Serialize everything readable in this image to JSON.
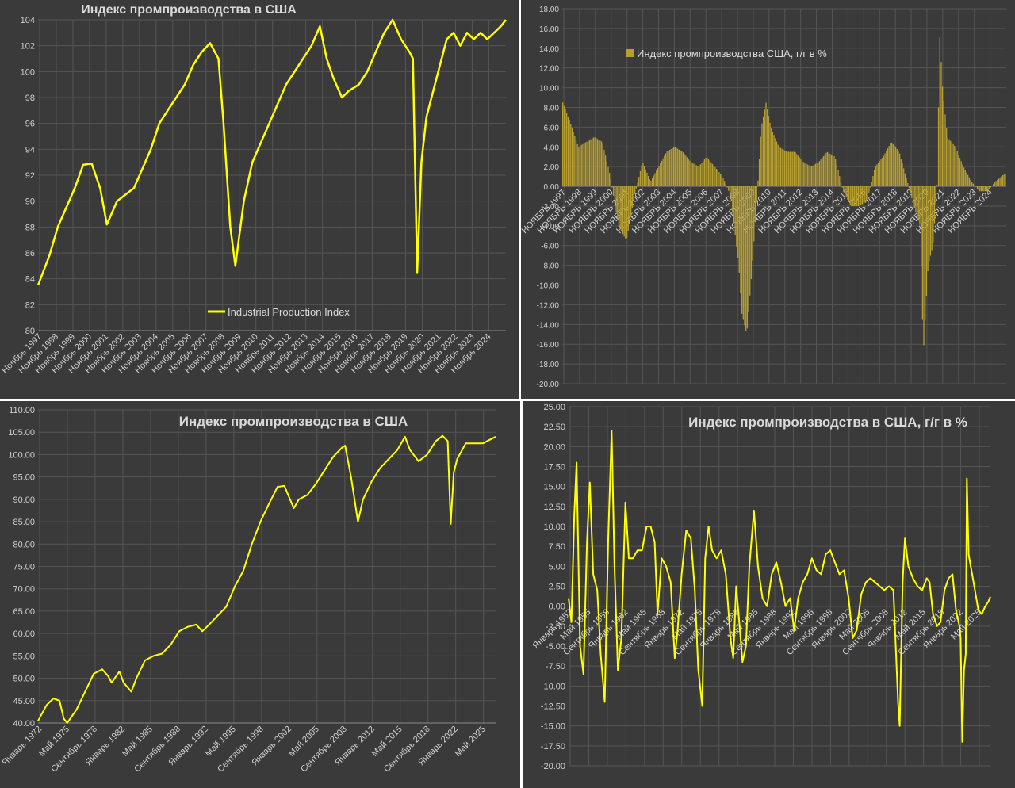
{
  "colors": {
    "background": "#3a3a3a",
    "grid": "#555555",
    "line": "#ffff00",
    "bar": "#b8a030",
    "text": "#d9d9d9"
  },
  "chart_data": [
    {
      "id": "p1",
      "type": "line",
      "title": "Индекс промпроизводства в США",
      "legend": "Industrial Production Index",
      "legend_position": "bottom-center",
      "grid": true,
      "ylim": [
        80,
        104
      ],
      "yticks": [
        "80",
        "82",
        "84",
        "86",
        "88",
        "90",
        "92",
        "94",
        "96",
        "98",
        "100",
        "102",
        "104"
      ],
      "xlim": [
        1997.83,
        2025.5
      ],
      "xlabels": [
        "Ноябрь 1997",
        "Ноябрь 1998",
        "Ноябрь 1999",
        "Ноябрь 2000",
        "Ноябрь 2001",
        "Ноябрь 2002",
        "Ноябрь 2003",
        "Ноябрь 2004",
        "Ноябрь 2005",
        "Ноябрь 2006",
        "Ноябрь 2007",
        "Ноябрь 2008",
        "Ноябрь 2009",
        "Ноябрь 2010",
        "Ноябрь 2011",
        "Ноябрь 2012",
        "Ноябрь 2013",
        "Ноябрь 2014",
        "Ноябрь 2015",
        "Ноябрь 2016",
        "Ноябрь 2017",
        "Ноябрь 2018",
        "Ноябрь 2019",
        "Ноябрь 2020",
        "Ноябрь 2021",
        "Ноябрь 2022",
        "Ноябрь 2023",
        "Ноябрь 2024"
      ],
      "x": [
        1997.83,
        1998.5,
        1999.0,
        1999.5,
        2000.0,
        2000.5,
        2001.0,
        2001.5,
        2001.9,
        2002.5,
        2003.0,
        2003.5,
        2004.0,
        2004.5,
        2005.0,
        2005.5,
        2006.0,
        2006.5,
        2007.0,
        2007.5,
        2008.0,
        2008.5,
        2008.8,
        2009.2,
        2009.5,
        2010.0,
        2010.5,
        2011.0,
        2011.5,
        2012.0,
        2012.5,
        2013.0,
        2013.5,
        2014.0,
        2014.5,
        2014.9,
        2015.3,
        2015.8,
        2016.2,
        2016.8,
        2017.3,
        2017.8,
        2018.3,
        2018.8,
        2019.3,
        2019.8,
        2020.0,
        2020.25,
        2020.5,
        2020.8,
        2021.2,
        2021.6,
        2022.0,
        2022.4,
        2022.8,
        2023.2,
        2023.6,
        2024.0,
        2024.4,
        2024.8,
        2025.2,
        2025.5
      ],
      "y": [
        83.5,
        85.8,
        88.0,
        89.5,
        91.0,
        92.8,
        92.9,
        91.0,
        88.2,
        90.0,
        90.5,
        91.0,
        92.5,
        94.0,
        96.0,
        97.0,
        98.0,
        99.0,
        100.5,
        101.5,
        102.2,
        101.0,
        96.0,
        88.0,
        85.0,
        90.0,
        93.0,
        94.5,
        96.0,
        97.5,
        99.0,
        100.0,
        101.0,
        102.0,
        103.5,
        101.0,
        99.5,
        98.0,
        98.5,
        99.0,
        100.0,
        101.5,
        103.0,
        104.0,
        102.5,
        101.5,
        101.0,
        84.5,
        93.0,
        96.5,
        98.5,
        100.5,
        102.5,
        103.0,
        102.0,
        103.0,
        102.5,
        103.0,
        102.5,
        103.0,
        103.5,
        104.0
      ]
    },
    {
      "id": "p2",
      "type": "bar",
      "legend": "Индекс промпроизводства США, г/г в %",
      "legend_position": "top-left",
      "grid": true,
      "ylim": [
        -20,
        18
      ],
      "yticks": [
        "-20.00",
        "-18.00",
        "-16.00",
        "-14.00",
        "-12.00",
        "-10.00",
        "-8.00",
        "-6.00",
        "-4.00",
        "-2.00",
        "0.00",
        "2.00",
        "4.00",
        "6.00",
        "8.00",
        "10.00",
        "12.00",
        "14.00",
        "16.00",
        "18.00"
      ],
      "xlim": [
        1997.83,
        2025.5
      ],
      "xlabels": [
        "НОЯБРЬ 1997",
        "НОЯБРЬ 1998",
        "НОЯБРЬ 1999",
        "НОЯБРЬ 2000",
        "НОЯБРЬ 2001",
        "НОЯБРЬ 2002",
        "НОЯБРЬ 2003",
        "НОЯБРЬ 2004",
        "НОЯБРЬ 2005",
        "НОЯБРЬ 2006",
        "НОЯБРЬ 2007",
        "НОЯБРЬ 2008",
        "НОЯБРЬ 2009",
        "НОЯБРЬ 2010",
        "НОЯБРЬ 2011",
        "НОЯБРЬ 2012",
        "НОЯБРЬ 2013",
        "НОЯБРЬ 2014",
        "НОЯБРЬ 2015",
        "НОЯБРЬ 2016",
        "НОЯБРЬ 2017",
        "НОЯБРЬ 2018",
        "НОЯБРЬ 2019",
        "НОЯБРЬ 2020",
        "НОЯБРЬ 2021",
        "НОЯБРЬ 2022",
        "НОЯБРЬ 2023",
        "НОЯБРЬ 2024"
      ],
      "x": [
        1997.83,
        1998.3,
        1998.8,
        1999.3,
        1999.8,
        2000.3,
        2000.8,
        2001.3,
        2001.8,
        2002.3,
        2002.8,
        2003.3,
        2003.8,
        2004.3,
        2004.8,
        2005.3,
        2005.8,
        2006.3,
        2006.8,
        2007.3,
        2007.8,
        2008.3,
        2008.8,
        2009.0,
        2009.3,
        2009.6,
        2009.9,
        2010.2,
        2010.5,
        2010.8,
        2011.3,
        2011.8,
        2012.3,
        2012.8,
        2013.3,
        2013.8,
        2014.3,
        2014.8,
        2015.3,
        2015.8,
        2016.3,
        2016.8,
        2017.3,
        2017.8,
        2018.3,
        2018.8,
        2019.3,
        2019.8,
        2020.1,
        2020.3,
        2020.6,
        2020.9,
        2021.2,
        2021.3,
        2021.5,
        2021.8,
        2022.3,
        2022.8,
        2023.3,
        2023.8,
        2024.3,
        2024.8,
        2025.3
      ],
      "y": [
        8.5,
        6.5,
        4.0,
        4.5,
        5.0,
        4.5,
        1.0,
        -4.0,
        -5.5,
        -1.0,
        2.5,
        0.5,
        2.0,
        3.5,
        4.0,
        3.5,
        2.5,
        2.0,
        3.0,
        2.0,
        1.0,
        -1.0,
        -8.0,
        -13.0,
        -15.0,
        -9.0,
        -2.0,
        6.0,
        8.5,
        6.0,
        4.0,
        3.5,
        3.5,
        2.5,
        2.0,
        2.5,
        3.5,
        3.0,
        -0.5,
        -2.0,
        -2.0,
        -1.5,
        2.0,
        3.0,
        4.5,
        3.5,
        0.5,
        -2.5,
        -4.0,
        -17.0,
        -8.0,
        -6.0,
        1.0,
        16.0,
        10.0,
        5.0,
        4.0,
        2.0,
        0.5,
        -0.5,
        -0.5,
        0.5,
        1.2
      ]
    },
    {
      "id": "p3",
      "type": "line",
      "title": "Индекс промпроизводства в США",
      "grid": true,
      "ylim": [
        40,
        110
      ],
      "yticks": [
        "40.00",
        "45.00",
        "50.00",
        "55.00",
        "60.00",
        "65.00",
        "70.00",
        "75.00",
        "80.00",
        "85.00",
        "90.00",
        "95.00",
        "100.00",
        "105.00",
        "110.00"
      ],
      "xlim": [
        1972.0,
        2025.5
      ],
      "xlabels": [
        "Январь 1972",
        "Май 1975",
        "Сентябрь 1978",
        "Январь 1982",
        "Май 1985",
        "Сентябрь 1988",
        "Январь 1992",
        "Май 1995",
        "Сентябрь 1998",
        "Январь 2002",
        "Май 2005",
        "Сентябрь 2008",
        "Январь 2012",
        "Май 2015",
        "Сентябрь 2018",
        "Январь 2022",
        "Май 2025"
      ],
      "x": [
        1972.0,
        1973.0,
        1973.8,
        1974.5,
        1975.0,
        1975.4,
        1976.5,
        1977.5,
        1978.5,
        1979.5,
        1980.2,
        1980.6,
        1981.5,
        1982.0,
        1982.9,
        1983.5,
        1984.5,
        1985.5,
        1986.5,
        1987.5,
        1988.5,
        1989.5,
        1990.5,
        1991.2,
        1992.0,
        1993.0,
        1994.0,
        1995.0,
        1996.0,
        1997.0,
        1998.0,
        1999.0,
        2000.0,
        2000.8,
        2001.9,
        2002.5,
        2003.5,
        2004.5,
        2005.5,
        2006.5,
        2007.5,
        2007.9,
        2008.6,
        2009.4,
        2010.0,
        2011.0,
        2012.0,
        2013.0,
        2014.0,
        2014.9,
        2015.5,
        2016.5,
        2017.5,
        2018.5,
        2019.3,
        2019.9,
        2020.25,
        2020.6,
        2021.0,
        2022.0,
        2023.0,
        2024.0,
        2025.0,
        2025.5
      ],
      "y": [
        40.5,
        44.0,
        45.5,
        45.0,
        41.0,
        40.0,
        43.0,
        47.0,
        51.0,
        52.0,
        50.5,
        49.0,
        51.5,
        49.0,
        47.0,
        50.0,
        54.0,
        55.0,
        55.5,
        57.5,
        60.5,
        61.5,
        62.0,
        60.5,
        62.0,
        64.0,
        66.0,
        70.5,
        74.0,
        80.0,
        85.0,
        89.0,
        92.8,
        93.0,
        88.0,
        90.0,
        91.0,
        93.5,
        96.5,
        99.5,
        101.5,
        102.0,
        95.0,
        85.0,
        90.0,
        94.0,
        97.0,
        99.0,
        101.0,
        104.0,
        101.0,
        98.5,
        100.0,
        103.0,
        104.2,
        103.0,
        84.5,
        96.0,
        99.0,
        102.5,
        102.5,
        102.5,
        103.5,
        104.0
      ]
    },
    {
      "id": "p4",
      "type": "line",
      "title": "Индекс промпроизводства в США, г/г в %",
      "grid": true,
      "ylim": [
        -20,
        25
      ],
      "yticks": [
        "-20.00",
        "-17.50",
        "-15.00",
        "-12.50",
        "-10.00",
        "-7.50",
        "-5.00",
        "-2.50",
        "0.00",
        "2.50",
        "5.00",
        "7.50",
        "10.00",
        "12.50",
        "15.00",
        "17.50",
        "20.00",
        "22.50",
        "25.00"
      ],
      "xlim": [
        1952.0,
        2025.5
      ],
      "xlabels": [
        "Январь 1952",
        "Май 1955",
        "Сентябрь 1958",
        "Январь 1962",
        "Май 1965",
        "Сентябрь 1968",
        "Январь 1972",
        "Май 1975",
        "Сентябрь 1978",
        "Январь 1982",
        "Май 1985",
        "Сентябрь 1988",
        "Январь 1992",
        "Май 1995",
        "Сентябрь 1998",
        "Январь 2002",
        "Май 2005",
        "Сентябрь 2008",
        "Январь 2012",
        "Май 2015",
        "Сентябрь 2018",
        "Январь 2022",
        "Май 2025"
      ],
      "x": [
        1952.0,
        1952.5,
        1953.0,
        1953.4,
        1954.0,
        1954.6,
        1955.2,
        1955.7,
        1956.3,
        1957.0,
        1957.6,
        1958.3,
        1958.9,
        1959.5,
        1960.0,
        1960.6,
        1961.2,
        1961.9,
        1962.5,
        1963.2,
        1964.0,
        1964.8,
        1965.6,
        1966.3,
        1967.0,
        1967.5,
        1968.2,
        1969.0,
        1969.8,
        1970.5,
        1971.0,
        1971.7,
        1972.5,
        1973.3,
        1974.0,
        1974.6,
        1975.3,
        1975.8,
        1976.4,
        1977.0,
        1977.8,
        1978.6,
        1979.4,
        1980.2,
        1980.7,
        1981.2,
        1981.8,
        1982.3,
        1982.9,
        1983.5,
        1984.3,
        1985.0,
        1985.8,
        1986.6,
        1987.4,
        1988.2,
        1989.0,
        1989.8,
        1990.6,
        1991.3,
        1992.0,
        1992.8,
        1993.6,
        1994.4,
        1995.2,
        1996.0,
        1996.8,
        1997.6,
        1998.4,
        1999.2,
        2000.0,
        2000.8,
        2001.5,
        2002.2,
        2003.0,
        2003.8,
        2004.6,
        2005.4,
        2006.2,
        2007.0,
        2007.8,
        2008.6,
        2009.0,
        2009.4,
        2009.7,
        2010.2,
        2010.6,
        2011.2,
        2012.0,
        2012.8,
        2013.6,
        2014.4,
        2014.9,
        2015.5,
        2016.2,
        2016.8,
        2017.5,
        2018.2,
        2018.9,
        2019.5,
        2020.1,
        2020.3,
        2020.6,
        2020.9,
        2021.2,
        2021.4,
        2021.7,
        2022.2,
        2022.8,
        2023.4,
        2024.0,
        2024.6,
        2025.1,
        2025.5
      ],
      "y": [
        1.0,
        -2.0,
        11.5,
        18.0,
        -5.0,
        -8.5,
        8.0,
        15.5,
        4.0,
        2.0,
        -6.0,
        -12.0,
        8.0,
        22.0,
        5.0,
        -8.0,
        -4.0,
        13.0,
        6.0,
        6.0,
        7.0,
        7.0,
        10.0,
        10.0,
        8.0,
        -1.0,
        6.0,
        5.0,
        3.0,
        -6.5,
        -3.0,
        4.0,
        9.5,
        8.5,
        2.0,
        -8.0,
        -12.5,
        6.0,
        10.0,
        7.0,
        6.0,
        7.0,
        4.0,
        -4.0,
        -6.5,
        2.5,
        -2.5,
        -7.0,
        -5.0,
        5.0,
        12.0,
        5.0,
        1.0,
        0.0,
        4.0,
        5.5,
        3.0,
        0.0,
        1.0,
        -3.0,
        1.0,
        3.0,
        4.0,
        6.0,
        4.5,
        4.0,
        6.5,
        7.0,
        5.5,
        4.0,
        4.5,
        1.0,
        -4.0,
        -3.0,
        1.5,
        3.0,
        3.5,
        3.0,
        2.5,
        2.0,
        2.5,
        2.0,
        -5.0,
        -12.0,
        -15.0,
        3.0,
        8.5,
        5.0,
        3.5,
        2.5,
        2.0,
        3.5,
        3.0,
        -1.0,
        -2.5,
        -2.0,
        2.0,
        3.5,
        4.0,
        -0.5,
        -2.5,
        -4.0,
        -17.0,
        -8.0,
        -6.0,
        16.0,
        6.5,
        4.5,
        2.0,
        -0.5,
        -1.0,
        0.0,
        0.5,
        1.2
      ]
    }
  ]
}
